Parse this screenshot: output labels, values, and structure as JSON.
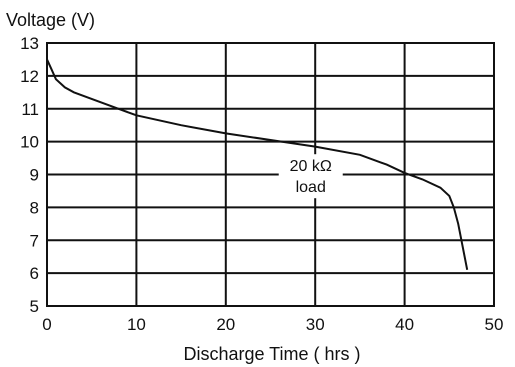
{
  "chart_data": {
    "type": "line",
    "ylabel": "Voltage (V)",
    "xlabel": "Discharge Time ( hrs )",
    "xlim": [
      0,
      50
    ],
    "ylim": [
      5,
      13
    ],
    "x_ticks": [
      0,
      10,
      20,
      30,
      40,
      50
    ],
    "y_ticks": [
      5,
      6,
      7,
      8,
      9,
      10,
      11,
      12,
      13
    ],
    "grid": true,
    "annotation": {
      "lines": [
        "20 kΩ",
        "load"
      ],
      "x": 29.5,
      "y": 9.1
    },
    "series": [
      {
        "points": [
          [
            0,
            12.5
          ],
          [
            0.5,
            12.2
          ],
          [
            1,
            11.9
          ],
          [
            2,
            11.65
          ],
          [
            3,
            11.5
          ],
          [
            5,
            11.3
          ],
          [
            8,
            11.0
          ],
          [
            10,
            10.8
          ],
          [
            15,
            10.5
          ],
          [
            20,
            10.25
          ],
          [
            25,
            10.05
          ],
          [
            30,
            9.85
          ],
          [
            35,
            9.6
          ],
          [
            38,
            9.3
          ],
          [
            40,
            9.05
          ],
          [
            42,
            8.85
          ],
          [
            44,
            8.6
          ],
          [
            45,
            8.35
          ],
          [
            45.5,
            8.0
          ],
          [
            46,
            7.5
          ],
          [
            46.5,
            6.8
          ],
          [
            47,
            6.1
          ]
        ]
      }
    ]
  }
}
